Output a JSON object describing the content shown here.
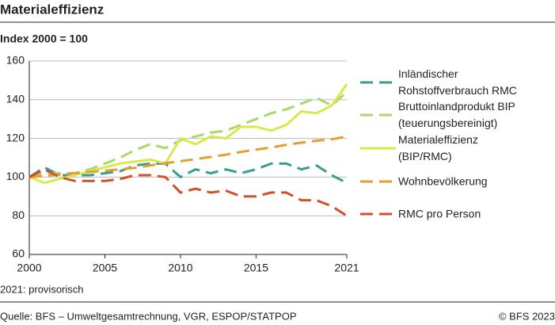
{
  "chart_data": {
    "type": "line",
    "title": "Materialeffizienz",
    "subtitle": "Index 2000 = 100",
    "note": "2021: provisorisch",
    "source": "Quelle: BFS – Umweltgesamtrechnung, VGR, ESPOP/STATPOP",
    "copyright": "© BFS 2023",
    "x": [
      2000,
      2001,
      2002,
      2003,
      2004,
      2005,
      2006,
      2007,
      2008,
      2009,
      2010,
      2011,
      2012,
      2013,
      2014,
      2015,
      2016,
      2017,
      2018,
      2019,
      2020,
      2021
    ],
    "xlim": [
      2000,
      2021
    ],
    "xticks": [
      2000,
      2005,
      2010,
      2015,
      2021
    ],
    "ylim": [
      60,
      160
    ],
    "yticks": [
      60,
      80,
      100,
      120,
      140,
      160
    ],
    "grid": true,
    "series": [
      {
        "name": "Inländischer\nRohstoffverbrauch RMC",
        "color": "#3a9e8f",
        "dashed": true,
        "values": [
          100,
          105,
          101,
          101,
          101,
          102,
          103,
          106,
          107,
          107,
          100,
          104,
          102,
          104,
          102,
          104,
          107,
          107,
          104,
          106,
          101,
          97
        ]
      },
      {
        "name": "Bruttoinlandprodukt BIP\n(teuerungsbereinigt)",
        "color": "#a8d96c",
        "dashed": true,
        "values": [
          100,
          102,
          102,
          102,
          104,
          107,
          110,
          114,
          117,
          115,
          119,
          121,
          123,
          124,
          127,
          130,
          133,
          135,
          138,
          141,
          137,
          144
        ]
      },
      {
        "name": "Materialeffizienz\n(BIP/RMC)",
        "color": "#d8e94a",
        "dashed": false,
        "values": [
          100,
          97,
          99,
          101,
          103,
          105,
          107,
          108,
          109,
          107,
          120,
          117,
          121,
          120,
          126,
          126,
          124,
          127,
          134,
          133,
          137,
          148
        ]
      },
      {
        "name": "Wohnbevölkerung",
        "color": "#e2a032",
        "dashed": true,
        "values": [
          100,
          100.6,
          101.3,
          102,
          102.7,
          103.3,
          104,
          104.8,
          106,
          107.2,
          108.2,
          109.3,
          110.4,
          111.6,
          113,
          114.2,
          115.3,
          116.7,
          117.8,
          118.8,
          119.5,
          121
        ]
      },
      {
        "name": "RMC pro Person",
        "color": "#d4502a",
        "dashed": true,
        "values": [
          100,
          104,
          100,
          98,
          98,
          98,
          99,
          101,
          101,
          100,
          92,
          94,
          92,
          93,
          90,
          90,
          92,
          92,
          88,
          88,
          85,
          80
        ]
      }
    ]
  }
}
